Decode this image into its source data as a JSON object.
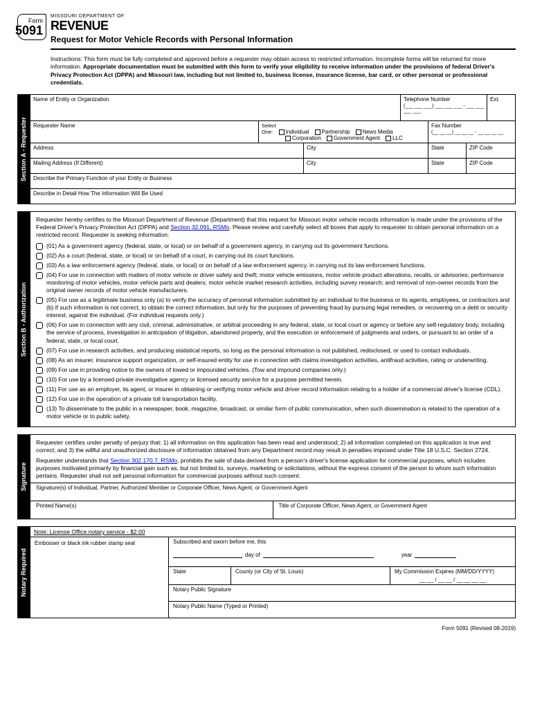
{
  "header": {
    "form_label": "Form",
    "form_number": "5091",
    "department": "MISSOURI DEPARTMENT OF",
    "revenue": "REVENUE",
    "title": "Request for Motor Vehicle Records with Personal Information"
  },
  "instructions": {
    "prefix": "Instructions: This form must be fully completed and approved before a requester may obtain access to restricted information. Incomplete forms will be returned for more information.",
    "bold": "Appropriate documentation must be submitted with this form to verify your eligibility to receive information under the provisions of federal Driver's Privacy Protection Act (DPPA) and Missouri law, including but not limited to, business license, insurance license, bar card, or other personal or professional credentials."
  },
  "sectionA": {
    "label": "Section A - Requester",
    "entity": "Name of Entity or Organization",
    "phone": "Telephone Number",
    "ext": "Ext.",
    "requester": "Requester Name",
    "select_one": "Select One:",
    "individual": "Individual",
    "corporation": "Corporation",
    "partnership": "Partnership",
    "gov_agent": "Government Agent",
    "news": "News Media",
    "llc": "LLC",
    "fax": "Fax Number",
    "address": "Address",
    "city": "City",
    "state": "State",
    "zip": "ZIP Code",
    "mailing": "Mailing Address (If Different)",
    "primary": "Describe the Primary Function of your Entity or Business",
    "detail": "Describe in Detail How The Information Will Be Used"
  },
  "sectionB": {
    "label": "Section B - Authorization",
    "intro_pre": "Requester hereby certifies to the Missouri Department of Revenue (Department) that this request for Missouri motor vehicle records information is made under the provisions of the Federal Driver's Privacy Protection Act (DPPA) and ",
    "intro_link": "Section 32.091, RSMo",
    "intro_post": ". Please review and carefully select all boxes that apply to requester to obtain personal information on a restricted record. Requester is seeking information:",
    "items": [
      "(01) As a government agency (federal, state, or local) or on behalf of a government agency, in carrying out its government functions.",
      "(02) As a court (federal, state, or local) or on behalf of a court, in carrying out its court functions.",
      "(03) As a law enforcement agency (federal, state, or local) or on behalf of a law enforcement agency, in carrying out its law enforcement functions.",
      "(04) For use in connection with matters of motor vehicle or driver safety and theft; motor vehicle emissions, motor vehicle product alterations, recalls, or advisories; performance monitoring of motor vehicles, motor vehicle parts and dealers; motor vehicle market research activities, including survey research; and removal of non-owner records from the original owner records of motor vehicle manufacturers.",
      "(05) For use as a legitimate business only (a) to verify the accuracy of personal information submitted by an individual to the business or its agents, employees, or contractors and (b) if such information is not correct, to obtain the correct information, but only for the purposes of preventing fraud by pursuing legal remedies, or recovering on a debt or security interest, against the individual. (For individual requests only.)",
      "(06) For use in connection with any civil, criminal, administrative, or arbitral proceeding in any federal, state, or local court or agency or before any self-regulatory body, including the service of process, investigation in anticipation of litigation, abandoned property, and the execution or enforcement of judgments and orders, or pursuant to an order of a federal, state, or local court.",
      "(07) For use in research activities, and producing statistical reports, so long as the personal information is not published, redisclosed, or used to contact individuals.",
      "(08) As an insurer, insurance support organization, or self-insured entity for use in connection with claims investigation activities, antifraud activities, rating or underwriting.",
      "(09) For use in providing notice to the owners of towed or impounded vehicles. (Tow and impound companies only.)",
      "(10) For use by a licensed private investigative agency or licensed security service for a purpose permitted herein.",
      "(11) For use as an employer, its agent, or insurer in obtaining or verifying motor vehicle and driver record information relating to a holder of a commercial driver's license (CDL).",
      "(12) For use in the operation of a private toll transportation facility.",
      "(13) To disseminate to the public in a newspaper, book, magazine, broadcast, or similar form of public communication, when such dissemination is related to the operation of a motor vehicle or to public safety."
    ]
  },
  "signature": {
    "label": "Signature",
    "cert": "Requester certifies under penalty of perjury that: 1) all information on this application has been read and understood; 2) all information completed on this application is true and correct; and 3) the willful and unauthorized disclosure of information obtained from any Department record may result in penalties imposed under Title 18 U.S.C. Section 2724.",
    "understands_pre": "Requester understands that ",
    "understands_link": "Section 302.170.7, RSMo",
    "understands_post": ", prohibits the sale of data derived from a person's driver's license application for commercial purposes, which includes purposes motivated primarily by financial gain such as, but not limited to, surveys, marketing or solicitations, without the express consent of the person to whom such information pertains. Requester shall not sell personal information for commercial purposes without such consent.",
    "sig_label": "Signature(s) of Individual, Partner, Authorized Member or Corporate Officer, News Agent, or Government Agent",
    "printed": "Printed Name(s)",
    "title": "Title of Corporate Officer, News Agent, or Government Agent"
  },
  "notary": {
    "label": "Notary Required",
    "note": "Note: License Office notary service - $2.00",
    "embosser": "Embosser or black ink rubber stamp seal",
    "subscribed": "Subscribed and sworn before me, this",
    "day_of": "day of",
    "year": "year",
    "state": "State",
    "county": "County (or City of St. Louis)",
    "expires": "My Commission Expires (MM/DD/YYYY)",
    "expires_blank": "__ __ / __ __ / __ __ __ __",
    "np_sig": "Notary Public Signature",
    "np_name": "Notary Public Name (Typed or Printed)"
  },
  "footer": "Form 5091 (Revised 08-2019)"
}
